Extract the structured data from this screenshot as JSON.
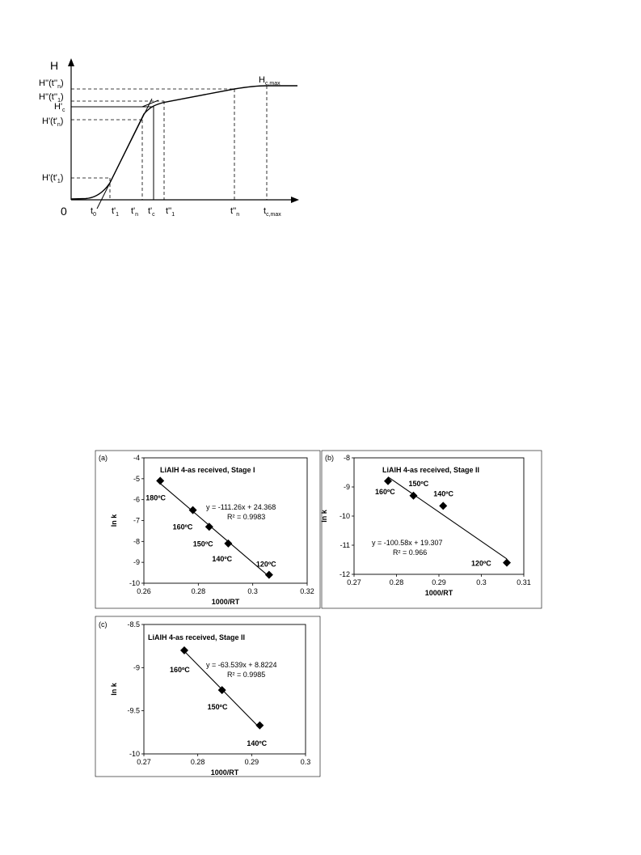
{
  "colors": {
    "ink": "#000000",
    "background": "#ffffff"
  },
  "schematic": {
    "y_axis_label": "H",
    "origin_label": "0",
    "y_labels": [
      {
        "main": "H''(t''",
        "sub": "n",
        "tail": ")"
      },
      {
        "main": "H''(t''",
        "sub": "1",
        "tail": ")"
      },
      {
        "main": "H'",
        "sub": "c",
        "tail": ""
      },
      {
        "main": "H'(t'",
        "sub": "n",
        "tail": ")"
      },
      {
        "main": "H'(t'",
        "sub": "1",
        "tail": ")"
      }
    ],
    "curve_end_label": {
      "main": "H",
      "sub": "c,max"
    },
    "x_labels": [
      {
        "main": "t",
        "sub": "0"
      },
      {
        "main": "t'",
        "sub": "1"
      },
      {
        "main": "t'",
        "sub": "n"
      },
      {
        "main": "t'",
        "sub": "c"
      },
      {
        "main": "t''",
        "sub": "1"
      },
      {
        "main": "t''",
        "sub": "n"
      },
      {
        "main": "t",
        "sub": "c,max"
      }
    ]
  },
  "chart_data": [
    {
      "type": "scatter",
      "panel_label": "(a)",
      "title": "LiAlH 4-as received, Stage I",
      "xlabel": "1000/RT",
      "ylabel": "ln k",
      "xlim": [
        0.26,
        0.32
      ],
      "ylim": [
        -10,
        -4
      ],
      "xticks": [
        "0.26",
        "0.28",
        "0.3",
        "0.32"
      ],
      "yticks": [
        "-4",
        "-5",
        "-6",
        "-7",
        "-8",
        "-9",
        "-10"
      ],
      "points": [
        {
          "x": 0.266,
          "y": -5.1,
          "label": "180ºC"
        },
        {
          "x": 0.278,
          "y": -6.5,
          "label": "160ºC"
        },
        {
          "x": 0.284,
          "y": -7.3,
          "label": "150ºC"
        },
        {
          "x": 0.291,
          "y": -8.1,
          "label": "140ºC"
        },
        {
          "x": 0.306,
          "y": -9.6,
          "label": "120ºC"
        }
      ],
      "fit": {
        "slope": -111.26,
        "intercept": 24.368
      },
      "equation": "y = -111.26x + 24.368",
      "r2": "R² = 0.9983"
    },
    {
      "type": "scatter",
      "panel_label": "(b)",
      "title": "LiAlH 4-as received, Stage II",
      "xlabel": "1000/RT",
      "ylabel": "ln k",
      "xlim": [
        0.27,
        0.31
      ],
      "ylim": [
        -12,
        -8
      ],
      "xticks": [
        "0.27",
        "0.28",
        "0.29",
        "0.3",
        "0.31"
      ],
      "yticks": [
        "-8",
        "-9",
        "-10",
        "-11",
        "-12"
      ],
      "points": [
        {
          "x": 0.278,
          "y": -8.8,
          "label": "160ºC"
        },
        {
          "x": 0.284,
          "y": -9.3,
          "label": "150ºC"
        },
        {
          "x": 0.291,
          "y": -9.65,
          "label": "140ºC"
        },
        {
          "x": 0.306,
          "y": -11.6,
          "label": "120ºC"
        }
      ],
      "fit": {
        "slope": -100.58,
        "intercept": 19.307
      },
      "equation": "y = -100.58x + 19.307",
      "r2": "R² = 0.966"
    },
    {
      "type": "scatter",
      "panel_label": "(c)",
      "title": "LiAlH 4-as received, Stage II",
      "xlabel": "1000/RT",
      "ylabel": "ln k",
      "xlim": [
        0.27,
        0.3
      ],
      "ylim": [
        -10,
        -8.5
      ],
      "xticks": [
        "0.27",
        "0.28",
        "0.29",
        "0.3"
      ],
      "yticks": [
        "-8.5",
        "-9",
        "-9.5",
        "-10"
      ],
      "points": [
        {
          "x": 0.2775,
          "y": -8.8,
          "label": "160ºC"
        },
        {
          "x": 0.2845,
          "y": -9.26,
          "label": "150ºC"
        },
        {
          "x": 0.2915,
          "y": -9.67,
          "label": "140ºC"
        }
      ],
      "fit": {
        "slope": -63.539,
        "intercept": 8.8224
      },
      "equation": "y = -63.539x + 8.8224",
      "r2": "R² = 0.9985"
    }
  ]
}
